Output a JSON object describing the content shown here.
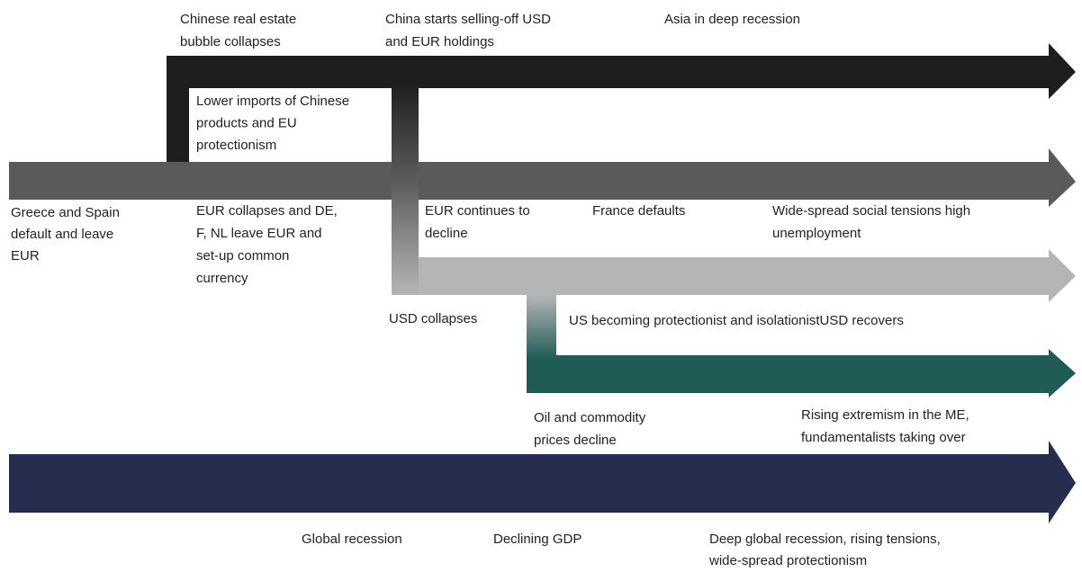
{
  "labels": [
    {
      "lines": [
        "Chinese real estate",
        "bubble collapses"
      ]
    },
    {
      "lines": [
        "China starts selling-off USD",
        "and EUR holdings"
      ]
    },
    {
      "lines": [
        "Asia in deep recession"
      ]
    },
    {
      "lines": [
        "Lower imports of Chinese",
        "products and EU",
        "protectionism"
      ]
    },
    {
      "lines": [
        "Greece and Spain",
        "default and leave",
        "EUR"
      ]
    },
    {
      "lines": [
        "EUR collapses and DE,",
        "F, NL leave EUR and",
        "set-up common",
        "currency"
      ]
    },
    {
      "lines": [
        "EUR continues to",
        "decline"
      ]
    },
    {
      "lines": [
        "France defaults"
      ]
    },
    {
      "lines": [
        "Wide-spread social tensions high",
        "unemployment"
      ]
    },
    {
      "lines": [
        "USD collapses"
      ]
    },
    {
      "lines": [
        "US becoming protectionist and isolationistUSD recovers"
      ]
    },
    {
      "lines": [
        "Oil and commodity",
        "prices decline"
      ]
    },
    {
      "lines": [
        "Rising extremism in the ME,",
        "fundamentalists taking over"
      ]
    },
    {
      "lines": [
        "Global recession"
      ]
    },
    {
      "lines": [
        "Declining GDP"
      ]
    },
    {
      "lines": [
        "Deep global recession, rising tensions,",
        "wide-spread protectionism"
      ]
    }
  ]
}
